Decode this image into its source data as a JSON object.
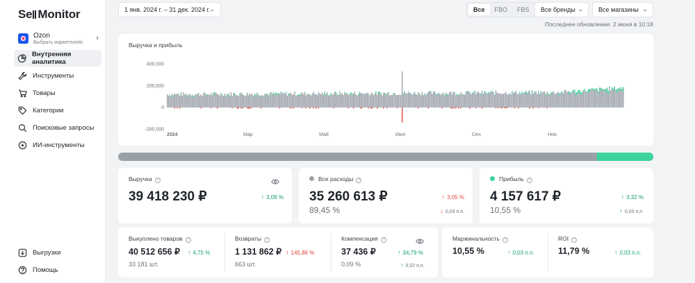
{
  "brand": {
    "name_prefix": "Se",
    "name_suffix": "Monitor"
  },
  "marketplace": {
    "name": "Ozon",
    "subtitle": "Выбрать маркетплейс"
  },
  "nav": [
    {
      "label": "Внутренняя аналитика",
      "icon": "pie-chart-icon",
      "active": true
    },
    {
      "label": "Инструменты",
      "icon": "wrench-icon"
    },
    {
      "label": "Товары",
      "icon": "cart-icon"
    },
    {
      "label": "Категории",
      "icon": "tag-icon"
    },
    {
      "label": "Поисковые запросы",
      "icon": "search-icon"
    },
    {
      "label": "ИИ-инструменты",
      "icon": "ai-icon"
    }
  ],
  "nav_bottom": [
    {
      "label": "Выгрузки",
      "icon": "download-icon"
    },
    {
      "label": "Помощь",
      "icon": "help-icon"
    }
  ],
  "toolbar": {
    "date_range": "1 янв. 2024 г. – 31 дек. 2024 г.",
    "segments": [
      "Все",
      "FBO",
      "FBS"
    ],
    "brands": "Все бренды",
    "stores": "Все магазины",
    "last_update": "Последнее обновление: 2 июня в 10:18"
  },
  "chart_data": {
    "type": "bar",
    "title": "Выручка и прибыль",
    "y_ticks": [
      "400,000",
      "200,000",
      "0",
      "-200,000"
    ],
    "ylim": [
      -200000,
      400000
    ],
    "x_ticks": [
      "2024",
      "Мар",
      "Май",
      "Июл",
      "Сен",
      "Ноя"
    ],
    "x_tick_fractions": [
      0.0,
      0.167,
      0.333,
      0.5,
      0.667,
      0.833
    ],
    "series": [
      {
        "values_description": "daily revenue ~ 110,000–180,000 (growing toward year end, peak ~330,000 in early July)"
      },
      {
        "values_description": "daily profit small positive/negative"
      }
    ],
    "colors": {
      "revenue": "#9aa0a8",
      "profit": "#3dd39c",
      "loss": "#e0443a"
    }
  },
  "ratio": {
    "profit_share": 0.1055,
    "colors": {
      "expenses": "#9aa0a8",
      "profit": "#3dd39c"
    }
  },
  "metrics": {
    "revenue": {
      "label": "Выручка",
      "value": "39 418 230 ₽",
      "delta": "3,08 %",
      "dir": "up"
    },
    "expenses": {
      "label": "Все расходы",
      "value": "35 260 613 ₽",
      "sub": "89,45 %",
      "delta": "3,05 %",
      "dir": "down",
      "delta2": "0,03 п.п.",
      "dir2": "down",
      "color": "#9aa0a8"
    },
    "profit": {
      "label": "Прибыль",
      "value": "4 157 617 ₽",
      "sub": "10,55 %",
      "delta": "3,32 %",
      "dir": "up",
      "delta2": "0,03 п.п.",
      "dir2": "up",
      "color": "#3dd39c"
    },
    "bought": {
      "label": "Выкуплено товаров",
      "value": "40 512 656 ₽",
      "sub": "33 181 шт.",
      "delta": "4,75 %",
      "dir": "up"
    },
    "returns": {
      "label": "Возвраты",
      "value": "1 131 862 ₽",
      "sub": "663 шт.",
      "delta": "145,86 %",
      "dir": "up-bad"
    },
    "compensation": {
      "label": "Компенсация",
      "value": "37 436 ₽",
      "sub": "0,09 %",
      "delta": "34,79 %",
      "dir": "up",
      "delta2": "0,02 п.п.",
      "dir2": "up"
    },
    "margin": {
      "label": "Маржинальность",
      "value": "10,55 %",
      "delta": "0,03 п.п.",
      "dir": "up"
    },
    "roi": {
      "label": "ROI",
      "value": "11,79 %",
      "delta": "0,03 п.п.",
      "dir": "up"
    }
  }
}
